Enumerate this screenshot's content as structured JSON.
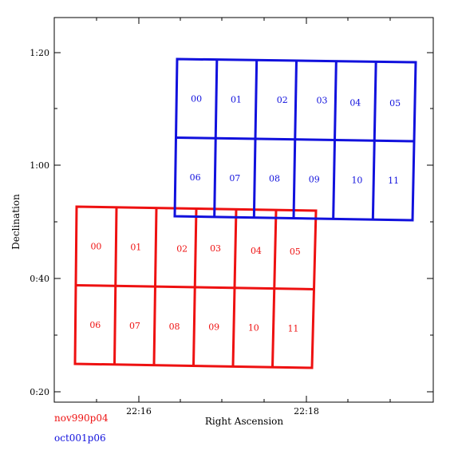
{
  "chart_data": {
    "type": "diagram",
    "xlabel": "Right Ascension",
    "ylabel": "Declination",
    "x_ticks": [
      {
        "label": "22:16",
        "value": 22.2667
      },
      {
        "label": "22:18",
        "value": 22.3
      }
    ],
    "y_ticks": [
      {
        "label": "1:20",
        "value": 80
      },
      {
        "label": "1:00",
        "value": 60
      },
      {
        "label": "0:40",
        "value": 40
      },
      {
        "label": "0:20",
        "value": 20
      }
    ],
    "mosaics": [
      {
        "name": "nov990p04",
        "color": "#ee1111",
        "rows": 2,
        "cols": 6,
        "chip_labels": [
          "00",
          "01",
          "02",
          "03",
          "04",
          "05",
          "06",
          "07",
          "08",
          "09",
          "10",
          "11"
        ]
      },
      {
        "name": "oct001p06",
        "color": "#1111dd",
        "rows": 2,
        "cols": 6,
        "chip_labels": [
          "00",
          "01",
          "02",
          "03",
          "04",
          "05",
          "06",
          "07",
          "08",
          "09",
          "10",
          "11"
        ]
      }
    ]
  }
}
